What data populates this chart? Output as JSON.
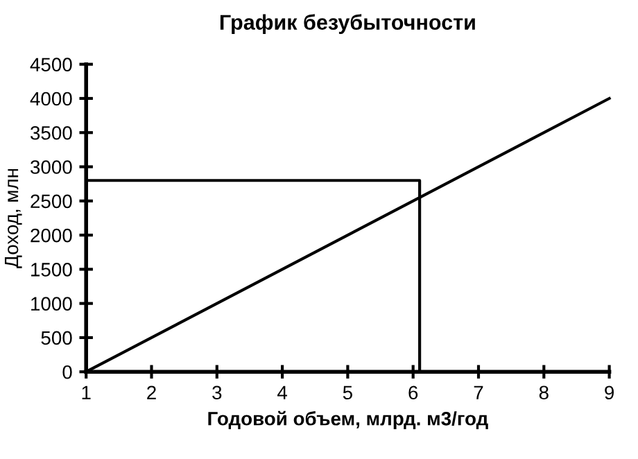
{
  "chart_data": {
    "type": "line",
    "title": "График безубыточности",
    "xlabel": "Годовой объем, млрд. м3/год",
    "ylabel": "Доход, млн",
    "series": [
      {
        "color": "#000000",
        "x": [
          1,
          9
        ],
        "values": [
          0,
          4000
        ]
      },
      {
        "color": "#000000",
        "x": [
          1,
          6.1,
          6.1
        ],
        "values": [
          2800,
          2800,
          0
        ]
      }
    ],
    "xlim": [
      1,
      9
    ],
    "xticks": [
      1,
      2,
      3,
      4,
      5,
      6,
      7,
      8,
      9
    ],
    "ylim": [
      0,
      4500
    ],
    "yticks": [
      0,
      500,
      1000,
      1500,
      2000,
      2500,
      3000,
      3500,
      4000,
      4500
    ],
    "grid": false,
    "legend": false
  }
}
